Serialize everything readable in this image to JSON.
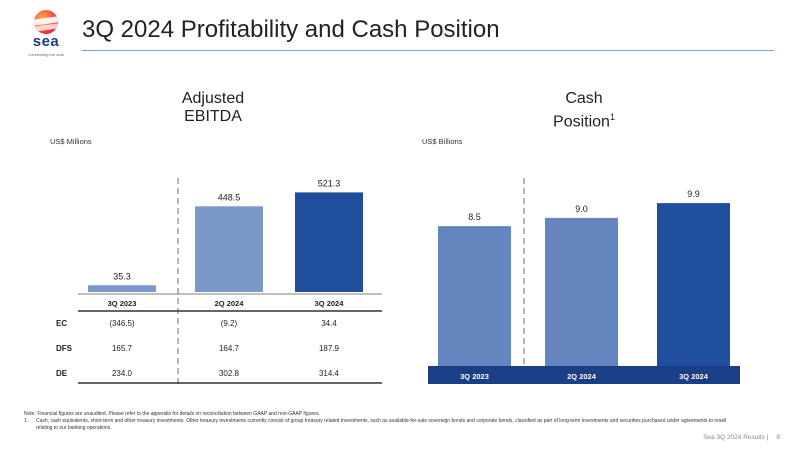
{
  "header": {
    "title": "3Q 2024 Profitability and Cash Position",
    "logo_text": "sea",
    "logo_tagline": "Connecting the dots"
  },
  "left": {
    "section_title_line1": "Adjusted",
    "section_title_line2": "EBITDA",
    "unit": "US$ Millions",
    "table_rows": [
      {
        "label": "EC",
        "values": [
          "(346.5)",
          "(9.2)",
          "34.4"
        ]
      },
      {
        "label": "DFS",
        "values": [
          "165.7",
          "164.7",
          "187.9"
        ]
      },
      {
        "label": "DE",
        "values": [
          "234.0",
          "302.8",
          "314.4"
        ]
      }
    ]
  },
  "right": {
    "section_title_line1": "Cash",
    "section_title_line2": "Position",
    "section_title_sup": "1",
    "unit": "US$ Billions"
  },
  "chart_data": [
    {
      "type": "bar",
      "title": "Adjusted EBITDA",
      "ylabel": "US$ Millions",
      "categories": [
        "3Q 2023",
        "2Q 2024",
        "3Q 2024"
      ],
      "values": [
        35.3,
        448.5,
        521.3
      ],
      "labels": [
        "35.3",
        "448.5",
        "521.3"
      ],
      "ylim": [
        0,
        560
      ],
      "colors": [
        "#7b98c9",
        "#7b98c9",
        "#1f4f9c"
      ]
    },
    {
      "type": "bar",
      "title": "Cash Position",
      "ylabel": "US$ Billions",
      "categories": [
        "3Q 2023",
        "2Q 2024",
        "3Q 2024"
      ],
      "values": [
        8.5,
        9.0,
        9.9
      ],
      "labels": [
        "8.5",
        "9.0",
        "9.9"
      ],
      "ylim": [
        0,
        11
      ],
      "colors": [
        "#6585be",
        "#6585be",
        "#1f4f9c"
      ]
    }
  ],
  "footnotes": {
    "note": "Note: Financial figures are unaudited. Please refer to the appendix for details on reconciliation between GAAP and non-GAAP figures.",
    "fn1_num": "1.",
    "fn1_text": "Cash, cash equivalents, short-term and other treasury investments. Other treasury investments currently consist of group treasury related investments, such as available-for-sale sovereign bonds and corporate bonds, classified as part of long-term investments and securities purchased under agreements to resell relating to our banking operations."
  },
  "footer": {
    "text": "Sea 3Q 2024 Results |",
    "page": "8"
  }
}
